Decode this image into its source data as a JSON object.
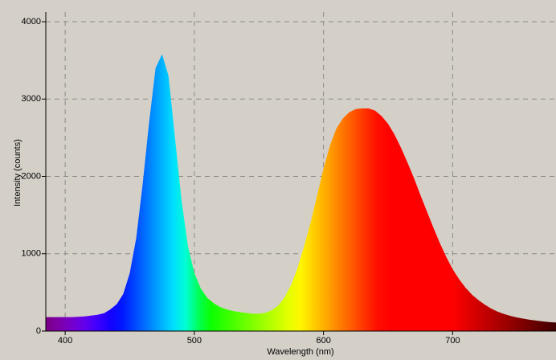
{
  "chart_data": {
    "type": "area",
    "x_label": "Wavelength (nm)",
    "y_label": "Intensity (counts)",
    "x": [
      385,
      390,
      395,
      400,
      405,
      410,
      415,
      420,
      425,
      430,
      435,
      440,
      445,
      450,
      455,
      460,
      465,
      470,
      475,
      480,
      485,
      490,
      495,
      500,
      505,
      510,
      515,
      520,
      525,
      530,
      535,
      540,
      545,
      550,
      555,
      560,
      565,
      570,
      575,
      580,
      585,
      590,
      595,
      600,
      605,
      610,
      615,
      620,
      625,
      630,
      635,
      640,
      645,
      650,
      655,
      660,
      665,
      670,
      675,
      680,
      685,
      690,
      695,
      700,
      705,
      710,
      715,
      720,
      725,
      730,
      735,
      740,
      745,
      750,
      755,
      760,
      765,
      770,
      775,
      780
    ],
    "values": [
      180,
      180,
      180,
      180,
      180,
      185,
      190,
      200,
      210,
      230,
      280,
      350,
      480,
      750,
      1200,
      1900,
      2700,
      3400,
      3580,
      3300,
      2500,
      1700,
      1100,
      750,
      550,
      430,
      360,
      310,
      280,
      260,
      245,
      235,
      225,
      225,
      235,
      270,
      330,
      440,
      600,
      820,
      1100,
      1400,
      1750,
      2100,
      2400,
      2620,
      2750,
      2830,
      2870,
      2880,
      2880,
      2850,
      2780,
      2680,
      2540,
      2370,
      2180,
      1980,
      1760,
      1550,
      1340,
      1140,
      960,
      800,
      670,
      560,
      470,
      400,
      340,
      290,
      250,
      220,
      195,
      175,
      160,
      145,
      135,
      125,
      115,
      110
    ],
    "xlim": [
      385,
      780
    ],
    "ylim": [
      0,
      4125
    ],
    "xticks": [
      400,
      500,
      600,
      700
    ],
    "yticks": [
      0,
      1000,
      2000,
      3000,
      4000
    ],
    "grid": true,
    "fill": "spectrum"
  }
}
